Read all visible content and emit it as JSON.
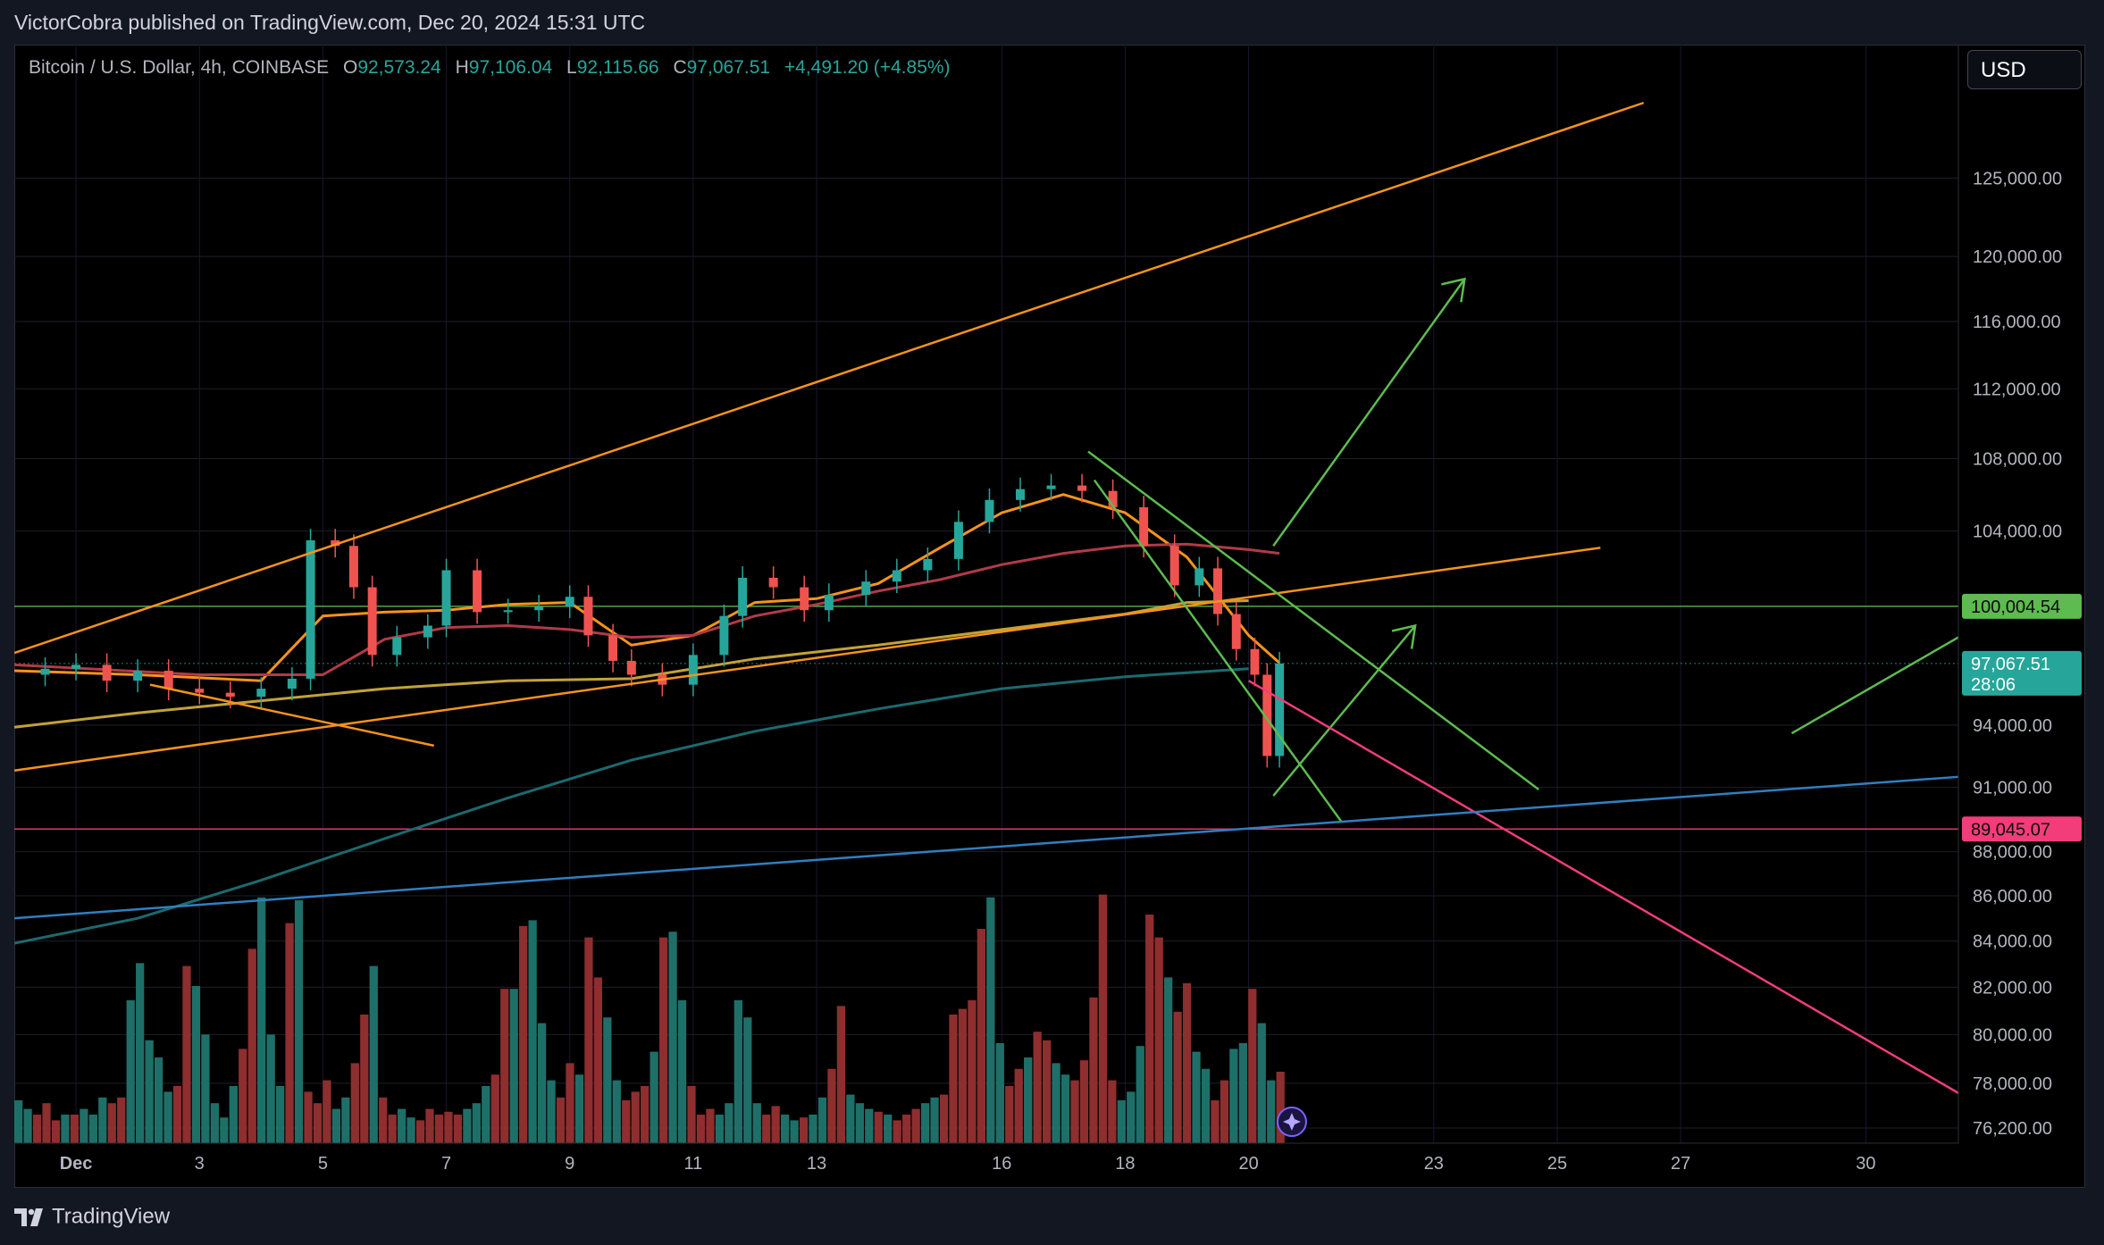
{
  "header": {
    "publisher_line": "VictorCobra published on TradingView.com, Dec 20, 2024 15:31 UTC"
  },
  "legend": {
    "symbol": "Bitcoin / U.S. Dollar, 4h, COINBASE",
    "open_label": "O",
    "open": "92,573.24",
    "high_label": "H",
    "high": "97,106.04",
    "low_label": "L",
    "low": "92,115.66",
    "close_label": "C",
    "close": "97,067.51",
    "change": "+4,491.20 (+4.85%)"
  },
  "currency": "USD",
  "footer": {
    "brand": "TradingView"
  },
  "colors": {
    "background": "#000000",
    "up": "#26a69a",
    "down": "#ef5350",
    "up_volume": "#1f6f69",
    "down_volume": "#8e2e2f",
    "orange": "#f7931a",
    "green_line": "#5dbb4f",
    "magenta": "#f23d7a",
    "blue_line": "#2f7fc1",
    "teal_ma": "#1b6a70",
    "maroon_ma": "#b23a48",
    "olive_ma": "#c2a23a"
  },
  "chart_data": {
    "type": "candlestick",
    "title": "Bitcoin / U.S. Dollar, 4h, COINBASE",
    "price_axis_ticks": [
      "125,000.00",
      "120,000.00",
      "116,000.00",
      "112,000.00",
      "108,000.00",
      "104,000.00",
      "94,000.00",
      "91,000.00",
      "88,000.00",
      "86,000.00",
      "84,000.00",
      "82,000.00",
      "80,000.00",
      "78,000.00",
      "76,200.00"
    ],
    "price_axis_scale": "log",
    "ylim": [
      75600,
      134000
    ],
    "x_axis_ticks": [
      "Dec",
      "3",
      "5",
      "7",
      "9",
      "11",
      "13",
      "16",
      "18",
      "20",
      "23",
      "25",
      "27",
      "30"
    ],
    "x_axis_tick_days": [
      1,
      3,
      5,
      7,
      9,
      11,
      13,
      16,
      18,
      20,
      23,
      25,
      27,
      30
    ],
    "xlim_days": [
      0.0,
      31.5
    ],
    "horizontal_levels": [
      {
        "label": "100,004.54",
        "price": 100004.54,
        "color": "#5dbb4f"
      },
      {
        "label": "97,067.51",
        "price": 97067.51,
        "color": "#26a69a",
        "sublabel": "28:06"
      },
      {
        "label": "89,045.07",
        "price": 89045.07,
        "color": "#f23d7a"
      }
    ],
    "price_series": [
      [
        0.0,
        96500
      ],
      [
        0.5,
        96800
      ],
      [
        1.0,
        97000
      ],
      [
        1.5,
        96200
      ],
      [
        2.0,
        96700
      ],
      [
        2.5,
        95800
      ],
      [
        3.0,
        95600
      ],
      [
        3.5,
        95400
      ],
      [
        4.0,
        95800
      ],
      [
        4.5,
        96300
      ],
      [
        4.8,
        103500
      ],
      [
        5.2,
        103200
      ],
      [
        5.5,
        101000
      ],
      [
        5.8,
        97500
      ],
      [
        6.2,
        98400
      ],
      [
        6.7,
        99000
      ],
      [
        7.0,
        101900
      ],
      [
        7.5,
        99700
      ],
      [
        8.0,
        99800
      ],
      [
        8.5,
        100000
      ],
      [
        9.0,
        100500
      ],
      [
        9.3,
        98500
      ],
      [
        9.7,
        97200
      ],
      [
        10.0,
        96500
      ],
      [
        10.5,
        96000
      ],
      [
        11.0,
        97500
      ],
      [
        11.5,
        99500
      ],
      [
        11.8,
        101500
      ],
      [
        12.3,
        101000
      ],
      [
        12.8,
        99800
      ],
      [
        13.2,
        100600
      ],
      [
        13.8,
        101300
      ],
      [
        14.3,
        101900
      ],
      [
        14.8,
        102500
      ],
      [
        15.3,
        104500
      ],
      [
        15.8,
        105700
      ],
      [
        16.3,
        106300
      ],
      [
        16.8,
        106500
      ],
      [
        17.3,
        106200
      ],
      [
        17.8,
        105300
      ],
      [
        18.3,
        103200
      ],
      [
        18.8,
        101100
      ],
      [
        19.2,
        102000
      ],
      [
        19.5,
        99600
      ],
      [
        19.8,
        97800
      ],
      [
        20.1,
        96500
      ],
      [
        20.3,
        92500
      ],
      [
        20.5,
        97067
      ]
    ],
    "moving_averages": [
      {
        "color": "#f7931a",
        "points": [
          [
            0,
            96700
          ],
          [
            2,
            96500
          ],
          [
            4,
            96200
          ],
          [
            5,
            99500
          ],
          [
            6,
            99700
          ],
          [
            7,
            99800
          ],
          [
            8,
            100100
          ],
          [
            9,
            100200
          ],
          [
            10,
            98000
          ],
          [
            11,
            98500
          ],
          [
            12,
            100200
          ],
          [
            13,
            100400
          ],
          [
            14,
            101200
          ],
          [
            15,
            103100
          ],
          [
            16,
            105000
          ],
          [
            17,
            106000
          ],
          [
            18,
            105000
          ],
          [
            19,
            102600
          ],
          [
            20,
            98500
          ],
          [
            20.5,
            97100
          ]
        ]
      },
      {
        "color": "#b23a48",
        "points": [
          [
            0,
            97000
          ],
          [
            3,
            96500
          ],
          [
            5,
            96500
          ],
          [
            6,
            98300
          ],
          [
            7,
            98900
          ],
          [
            8,
            99000
          ],
          [
            9,
            98800
          ],
          [
            10,
            98400
          ],
          [
            11,
            98500
          ],
          [
            12,
            99500
          ],
          [
            13,
            100100
          ],
          [
            14,
            100800
          ],
          [
            15,
            101400
          ],
          [
            16,
            102200
          ],
          [
            17,
            102800
          ],
          [
            18,
            103200
          ],
          [
            19,
            103300
          ],
          [
            20,
            103000
          ],
          [
            20.5,
            102800
          ]
        ]
      },
      {
        "color": "#c2a23a",
        "points": [
          [
            0,
            93900
          ],
          [
            2,
            94600
          ],
          [
            4,
            95200
          ],
          [
            6,
            95800
          ],
          [
            8,
            96200
          ],
          [
            10,
            96300
          ],
          [
            12,
            97300
          ],
          [
            14,
            98000
          ],
          [
            16,
            98800
          ],
          [
            18,
            99600
          ],
          [
            19,
            100200
          ],
          [
            20,
            100300
          ]
        ]
      },
      {
        "color": "#1b6a70",
        "points": [
          [
            0,
            83900
          ],
          [
            2,
            85000
          ],
          [
            4,
            86700
          ],
          [
            6,
            88600
          ],
          [
            8,
            90500
          ],
          [
            10,
            92300
          ],
          [
            12,
            93700
          ],
          [
            14,
            94800
          ],
          [
            16,
            95800
          ],
          [
            18,
            96400
          ],
          [
            20,
            96800
          ]
        ]
      }
    ],
    "volume_relative": [
      0.15,
      0.12,
      0.1,
      0.14,
      0.08,
      0.1,
      0.1,
      0.12,
      0.1,
      0.16,
      0.14,
      0.16,
      0.5,
      0.63,
      0.36,
      0.3,
      0.18,
      0.2,
      0.62,
      0.55,
      0.38,
      0.14,
      0.09,
      0.2,
      0.33,
      0.68,
      0.86,
      0.38,
      0.2,
      0.77,
      0.85,
      0.18,
      0.14,
      0.22,
      0.12,
      0.16,
      0.28,
      0.45,
      0.62,
      0.16,
      0.1,
      0.12,
      0.09,
      0.08,
      0.12,
      0.1,
      0.11,
      0.1,
      0.12,
      0.14,
      0.2,
      0.24,
      0.54,
      0.54,
      0.76,
      0.78,
      0.42,
      0.22,
      0.16,
      0.28,
      0.24,
      0.72,
      0.58,
      0.44,
      0.22,
      0.15,
      0.18,
      0.2,
      0.32,
      0.72,
      0.74,
      0.5,
      0.2,
      0.1,
      0.12,
      0.1,
      0.14,
      0.5,
      0.44,
      0.14,
      0.1,
      0.13,
      0.1,
      0.08,
      0.09,
      0.1,
      0.16,
      0.26,
      0.48,
      0.17,
      0.14,
      0.12,
      0.11,
      0.1,
      0.08,
      0.1,
      0.12,
      0.14,
      0.16,
      0.17,
      0.45,
      0.47,
      0.5,
      0.75,
      0.86,
      0.35,
      0.2,
      0.26,
      0.3,
      0.39,
      0.36,
      0.28,
      0.24,
      0.22,
      0.29,
      0.51,
      0.87,
      0.22,
      0.15,
      0.18,
      0.34,
      0.8,
      0.72,
      0.58,
      0.46,
      0.56,
      0.32,
      0.26,
      0.15,
      0.22,
      0.33,
      0.35,
      0.54,
      0.42,
      0.22,
      0.25
    ],
    "trendlines": [
      {
        "color": "#f7931a",
        "from": [
          0.0,
          97600
        ],
        "to": [
          26.4,
          130000
        ]
      },
      {
        "color": "#f7931a",
        "from": [
          0.0,
          91800
        ],
        "to": [
          25.7,
          103100
        ]
      },
      {
        "color": "#f7931a",
        "from": [
          2.2,
          96000
        ],
        "to": [
          6.8,
          93000
        ]
      },
      {
        "color": "#5dbb4f",
        "from": [
          17.4,
          108400
        ],
        "to": [
          24.7,
          90900
        ]
      },
      {
        "color": "#5dbb4f",
        "from": [
          17.5,
          106800
        ],
        "to": [
          21.5,
          89400
        ]
      },
      {
        "color": "#5dbb4f",
        "from": [
          20.4,
          90600
        ],
        "to": [
          22.7,
          99000
        ]
      },
      {
        "color": "#5dbb4f",
        "from": [
          20.4,
          103200
        ],
        "to": [
          23.5,
          118600
        ]
      },
      {
        "color": "#5dbb4f",
        "from": [
          28.8,
          93600
        ],
        "to": [
          31.5,
          98400
        ]
      },
      {
        "color": "#f23d7a",
        "from": [
          20.0,
          96200
        ],
        "to": [
          31.5,
          77600
        ]
      },
      {
        "color": "#2f7fc1",
        "from": [
          0.0,
          85000
        ],
        "to": [
          31.5,
          91500
        ]
      }
    ],
    "arrowheads": [
      {
        "color": "#5dbb4f",
        "at": [
          23.5,
          118600
        ]
      },
      {
        "color": "#5dbb4f",
        "at": [
          22.7,
          99000
        ]
      }
    ]
  }
}
